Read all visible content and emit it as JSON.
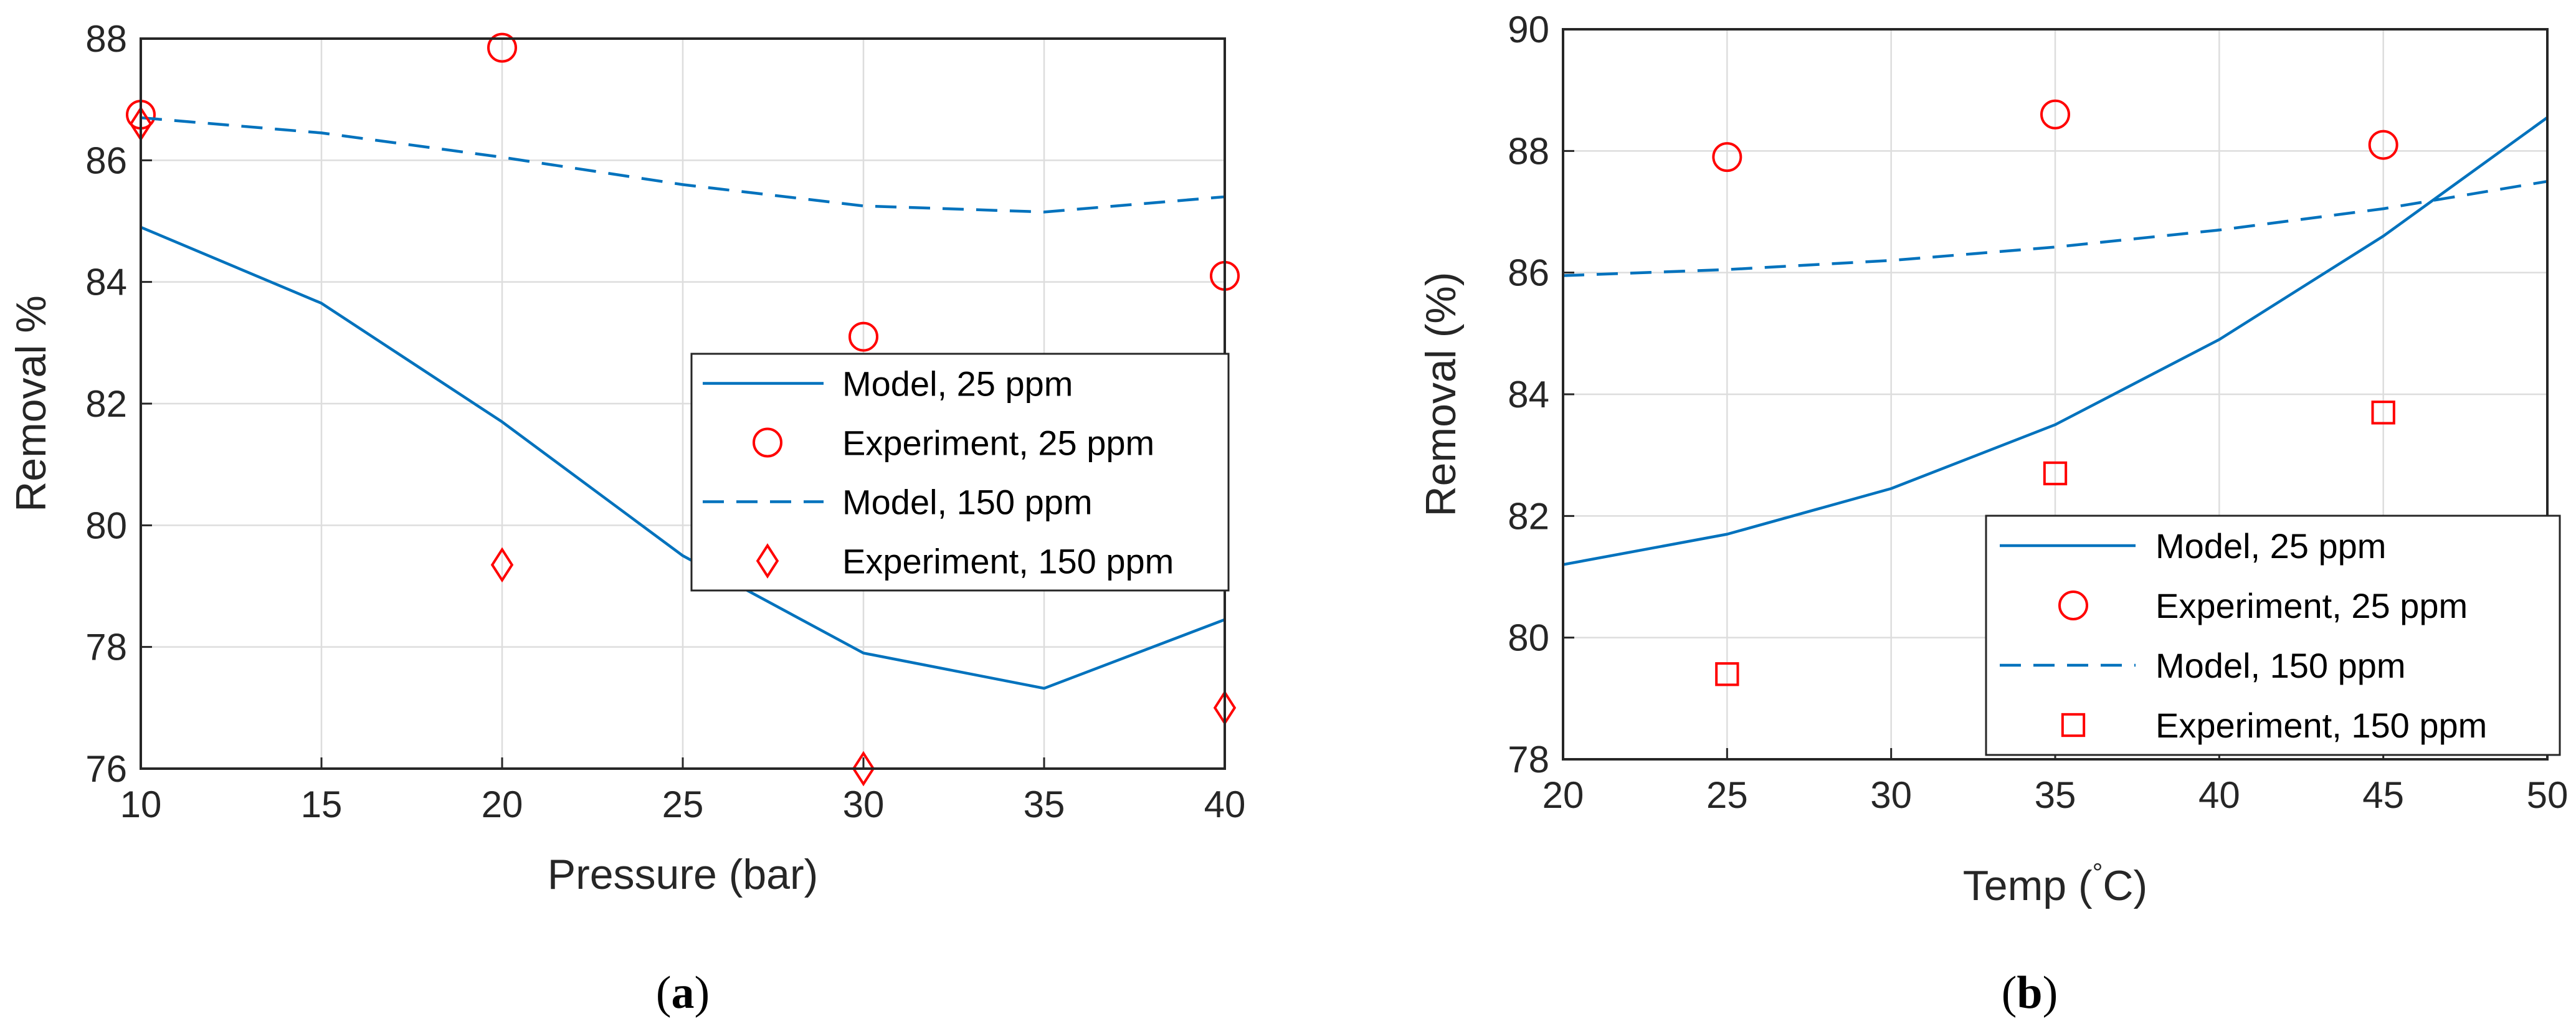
{
  "colors": {
    "model": "#0072BD",
    "experiment": "#FF0000",
    "grid": "#DDDDDD",
    "axis": "#262626"
  },
  "chart_data": [
    {
      "type": "line",
      "panel_open": "(",
      "panel_letter": "a",
      "panel_close": ")",
      "xlabel": "Pressure (bar)",
      "ylabel": "Removal %",
      "xlim": [
        10,
        40
      ],
      "ylim": [
        76,
        88
      ],
      "xticks": [
        10,
        15,
        20,
        25,
        30,
        35,
        40
      ],
      "yticks": [
        76,
        78,
        80,
        82,
        84,
        86,
        88
      ],
      "grid": true,
      "legend_position": "right",
      "series": [
        {
          "name": "Model, 25 ppm",
          "style": "solid",
          "x": [
            10,
            15,
            20,
            25,
            30,
            35,
            40
          ],
          "y": [
            84.9,
            83.65,
            81.7,
            79.5,
            77.9,
            77.32,
            78.45
          ]
        },
        {
          "name": "Experiment, 25 ppm",
          "style": "marker",
          "marker": "circle",
          "x": [
            10,
            20,
            30,
            40
          ],
          "y": [
            86.75,
            87.85,
            83.1,
            84.1
          ]
        },
        {
          "name": "Model, 150 ppm",
          "style": "dashed",
          "x": [
            10,
            15,
            20,
            25,
            30,
            35,
            40
          ],
          "y": [
            86.7,
            86.45,
            86.05,
            85.6,
            85.25,
            85.15,
            85.4
          ]
        },
        {
          "name": "Experiment, 150 ppm",
          "style": "marker",
          "marker": "diamond",
          "x": [
            10,
            20,
            30,
            40
          ],
          "y": [
            86.6,
            79.35,
            76.0,
            77.0
          ]
        }
      ]
    },
    {
      "type": "line",
      "panel_open": "(",
      "panel_letter": "b",
      "panel_close": ")",
      "xlabel_main": "Temp (",
      "xlabel_sup": "°",
      "xlabel_tail": "C)",
      "ylabel": "Removal (%)",
      "xlim": [
        20,
        50
      ],
      "ylim": [
        78,
        90
      ],
      "xticks": [
        20,
        25,
        30,
        35,
        40,
        45,
        50
      ],
      "yticks": [
        78,
        80,
        82,
        84,
        86,
        88,
        90
      ],
      "grid": true,
      "legend_position": "bottom-right",
      "series": [
        {
          "name": "Model, 25 ppm",
          "style": "solid",
          "x": [
            20,
            25,
            30,
            35,
            40,
            45,
            50
          ],
          "y": [
            81.2,
            81.7,
            82.45,
            83.5,
            84.9,
            86.6,
            88.55
          ]
        },
        {
          "name": "Experiment, 25 ppm",
          "style": "marker",
          "marker": "circle",
          "x": [
            25,
            35,
            45
          ],
          "y": [
            87.9,
            88.6,
            88.1
          ]
        },
        {
          "name": "Model, 150 ppm",
          "style": "dashed",
          "x": [
            20,
            25,
            30,
            35,
            40,
            45,
            50
          ],
          "y": [
            85.95,
            86.05,
            86.2,
            86.42,
            86.7,
            87.05,
            87.5
          ]
        },
        {
          "name": "Experiment, 150 ppm",
          "style": "marker",
          "marker": "square",
          "x": [
            25,
            35,
            45
          ],
          "y": [
            79.4,
            82.7,
            83.7
          ]
        }
      ]
    }
  ]
}
